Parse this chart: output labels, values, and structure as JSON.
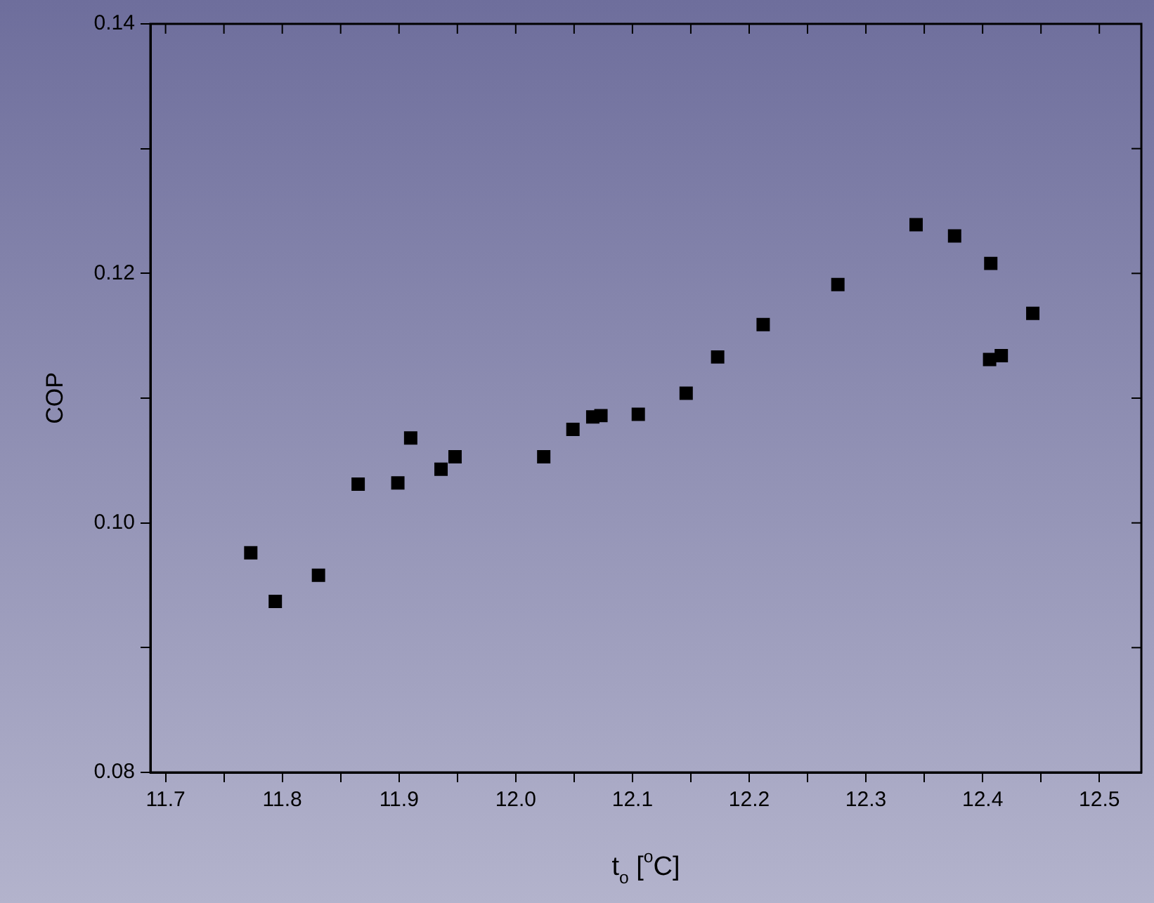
{
  "chart_data": {
    "type": "scatter",
    "xlabel": "t$_{o}$ [$^{o}$C]",
    "ylabel": "COP",
    "x": [
      11.773,
      11.794,
      11.831,
      11.865,
      11.899,
      11.91,
      11.936,
      11.948,
      12.024,
      12.049,
      12.066,
      12.073,
      12.105,
      12.146,
      12.173,
      12.212,
      12.276,
      12.343,
      12.376,
      12.407,
      12.406,
      12.416,
      12.443
    ],
    "series": [
      {
        "color": "#000000",
        "values": [
          0.0976,
          0.0937,
          0.0958,
          0.1031,
          0.1032,
          0.1068,
          0.1043,
          0.1053,
          0.1053,
          0.1075,
          0.1085,
          0.1086,
          0.1087,
          0.1104,
          0.1133,
          0.1159,
          0.1191,
          0.1239,
          0.123,
          0.1208,
          0.1131,
          0.1134,
          0.1168
        ]
      }
    ],
    "xlim": [
      11.687,
      12.536
    ],
    "ylim": [
      0.08,
      0.14
    ],
    "xticks": [
      11.7,
      {
        "value": 11.75,
        "label": null
      },
      11.8,
      {
        "value": 11.85,
        "label": null
      },
      11.9,
      {
        "value": 11.95,
        "label": null
      },
      {
        "value": 12.0,
        "label": "12.0"
      },
      {
        "value": 12.05,
        "label": null
      },
      12.1,
      {
        "value": 12.15,
        "label": null
      },
      12.2,
      {
        "value": 12.25,
        "label": null
      },
      12.3,
      {
        "value": 12.35,
        "label": null
      },
      12.4,
      {
        "value": 12.45,
        "label": null
      },
      12.5
    ],
    "yticks": [
      {
        "value": 0.08,
        "label": "0.08"
      },
      {
        "value": 0.09,
        "label": null
      },
      {
        "value": 0.1,
        "label": "0.10"
      },
      {
        "value": 0.11,
        "label": null
      },
      {
        "value": 0.12,
        "label": "0.12"
      },
      {
        "value": 0.13,
        "label": null
      },
      {
        "value": 0.14,
        "label": "0.14"
      }
    ],
    "marker": "square",
    "grid": false,
    "legend": false
  }
}
